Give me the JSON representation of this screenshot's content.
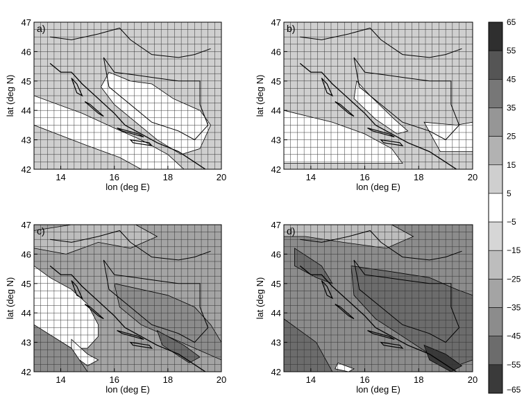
{
  "colors": {
    "bg": "#ffffff",
    "frame": "#000000",
    "grid": "#333333",
    "coast": "#000000",
    "levels": [
      "#2f2f2f",
      "#555555",
      "#777777",
      "#969696",
      "#b2b2b2",
      "#cfcfcf",
      "#ffffff",
      "#d6d6d6",
      "#bdbdbd",
      "#a4a4a4",
      "#8c8c8c",
      "#6c6c6c",
      "#3a3a3a"
    ]
  },
  "panels": [
    {
      "label": "a)",
      "xlabel": "lon (deg E)",
      "ylabel": "lat (deg N)",
      "base_level": 5
    },
    {
      "label": "b)",
      "xlabel": "lon (deg E)",
      "ylabel": "lat (deg N)",
      "base_level": 5
    },
    {
      "label": "c)",
      "xlabel": "lon (deg E)",
      "ylabel": "lat (deg N)",
      "base_level": 9
    },
    {
      "label": "d)",
      "xlabel": "lon (deg E)",
      "ylabel": "lat (deg N)",
      "base_level": 10
    }
  ],
  "axes": {
    "lon_range": [
      13,
      20
    ],
    "lat_range": [
      42,
      47
    ],
    "lon_ticks": [
      "14",
      "16",
      "18",
      "20"
    ],
    "lat_ticks": [
      "42",
      "43",
      "44",
      "45",
      "46",
      "47"
    ]
  },
  "colorbar": {
    "labels": [
      "65",
      "55",
      "45",
      "35",
      "25",
      "15",
      "5",
      "−5",
      "−15",
      "−25",
      "−35",
      "−45",
      "−55",
      "−65"
    ]
  },
  "chart_data": {
    "type": "heatmap",
    "x_range": [
      13,
      20
    ],
    "y_range": [
      42,
      47
    ],
    "levels": [
      65,
      55,
      45,
      35,
      25,
      15,
      5,
      -5,
      -15,
      -25,
      -35,
      -45,
      -55,
      -65
    ],
    "coastline": [
      [
        13.6,
        45.6
      ],
      [
        14.0,
        45.3
      ],
      [
        14.4,
        45.3
      ],
      [
        14.8,
        44.9
      ],
      [
        15.4,
        44.4
      ],
      [
        16.0,
        43.9
      ],
      [
        16.4,
        43.5
      ],
      [
        17.0,
        43.2
      ],
      [
        17.6,
        42.9
      ],
      [
        18.4,
        42.6
      ],
      [
        18.9,
        42.3
      ],
      [
        19.4,
        42.0
      ]
    ],
    "border_north": [
      [
        13.6,
        46.5
      ],
      [
        14.4,
        46.4
      ],
      [
        15.4,
        46.6
      ],
      [
        16.2,
        46.8
      ],
      [
        16.6,
        46.4
      ],
      [
        17.4,
        45.9
      ],
      [
        18.4,
        45.8
      ],
      [
        19.0,
        45.9
      ],
      [
        19.6,
        46.1
      ]
    ],
    "border_inner": [
      [
        15.6,
        45.8
      ],
      [
        16.0,
        45.3
      ],
      [
        16.8,
        45.2
      ],
      [
        17.6,
        45.1
      ],
      [
        18.4,
        45.0
      ],
      [
        19.2,
        45.0
      ],
      [
        19.2,
        44.2
      ],
      [
        19.5,
        43.5
      ],
      [
        19.0,
        43.0
      ],
      [
        18.4,
        43.3
      ],
      [
        17.4,
        43.6
      ],
      [
        16.6,
        44.2
      ],
      [
        15.8,
        44.8
      ],
      [
        15.6,
        45.8
      ]
    ],
    "islands": [
      [
        [
          14.4,
          45.1
        ],
        [
          14.6,
          44.6
        ],
        [
          14.8,
          44.5
        ],
        [
          14.6,
          44.9
        ]
      ],
      [
        [
          14.9,
          44.3
        ],
        [
          15.4,
          43.9
        ],
        [
          15.6,
          43.8
        ],
        [
          15.1,
          44.2
        ]
      ],
      [
        [
          16.1,
          43.4
        ],
        [
          16.9,
          43.2
        ],
        [
          17.1,
          43.1
        ],
        [
          16.3,
          43.3
        ]
      ],
      [
        [
          16.6,
          43.0
        ],
        [
          17.3,
          42.9
        ],
        [
          17.4,
          42.8
        ],
        [
          16.7,
          42.9
        ]
      ]
    ],
    "areas_by_panel": [
      [
        {
          "level": 6,
          "points": [
            [
              15.8,
              45.3
            ],
            [
              16.6,
              45.0
            ],
            [
              17.4,
              44.9
            ],
            [
              18.2,
              44.4
            ],
            [
              19.2,
              44.0
            ],
            [
              19.6,
              43.5
            ],
            [
              19.2,
              42.7
            ],
            [
              18.5,
              42.5
            ],
            [
              17.6,
              43.0
            ],
            [
              16.8,
              43.6
            ],
            [
              16.0,
              44.2
            ],
            [
              15.5,
              44.8
            ]
          ]
        },
        {
          "level": 6,
          "points": [
            [
              13.0,
              44.5
            ],
            [
              14.8,
              43.9
            ],
            [
              16.0,
              43.4
            ],
            [
              17.0,
              43.0
            ],
            [
              18.0,
              42.5
            ],
            [
              18.6,
              42.0
            ],
            [
              13.0,
              42.0
            ]
          ]
        },
        {
          "level": 5,
          "points": [
            [
              13.0,
              43.5
            ],
            [
              15.0,
              42.8
            ],
            [
              16.2,
              42.4
            ],
            [
              17.0,
              42.0
            ],
            [
              13.0,
              42.0
            ]
          ]
        }
      ],
      [
        {
          "level": 6,
          "points": [
            [
              15.7,
              45.0
            ],
            [
              16.2,
              44.5
            ],
            [
              17.1,
              43.7
            ],
            [
              17.6,
              43.3
            ],
            [
              17.2,
              43.2
            ],
            [
              16.4,
              43.7
            ],
            [
              15.6,
              44.4
            ]
          ]
        },
        {
          "level": 6,
          "points": [
            [
              13.0,
              44.0
            ],
            [
              14.8,
              43.6
            ],
            [
              16.0,
              43.2
            ],
            [
              17.0,
              42.7
            ],
            [
              17.4,
              42.2
            ],
            [
              13.0,
              42.2
            ]
          ]
        },
        {
          "level": 6,
          "points": [
            [
              18.2,
              43.6
            ],
            [
              19.4,
              43.5
            ],
            [
              20.0,
              43.6
            ],
            [
              20.0,
              42.6
            ],
            [
              18.8,
              42.6
            ]
          ]
        }
      ],
      [
        {
          "level": 6,
          "points": [
            [
              13.0,
              45.6
            ],
            [
              13.6,
              45.2
            ],
            [
              14.4,
              44.8
            ],
            [
              15.0,
              44.3
            ],
            [
              15.4,
              43.6
            ],
            [
              15.4,
              43.2
            ],
            [
              15.0,
              42.8
            ],
            [
              13.0,
              42.8
            ]
          ]
        },
        {
          "level": 6,
          "points": [
            [
              14.4,
              43.1
            ],
            [
              15.0,
              42.6
            ],
            [
              15.4,
              42.4
            ],
            [
              15.0,
              42.2
            ],
            [
              14.4,
              42.6
            ]
          ]
        },
        {
          "level": 10,
          "points": [
            [
              16.0,
              45.0
            ],
            [
              17.0,
              44.8
            ],
            [
              18.0,
              44.6
            ],
            [
              19.0,
              44.2
            ],
            [
              19.6,
              43.6
            ],
            [
              20.0,
              43.0
            ],
            [
              20.0,
              42.4
            ],
            [
              19.0,
              42.8
            ],
            [
              18.0,
              43.2
            ],
            [
              17.0,
              43.6
            ],
            [
              16.2,
              44.2
            ]
          ]
        },
        {
          "level": 11,
          "points": [
            [
              17.6,
              43.4
            ],
            [
              18.6,
              42.9
            ],
            [
              19.2,
              42.5
            ],
            [
              18.8,
              42.3
            ],
            [
              17.8,
              42.9
            ]
          ]
        },
        {
          "level": 8,
          "points": [
            [
              13.0,
              46.8
            ],
            [
              14.4,
              47.0
            ],
            [
              16.8,
              47.0
            ],
            [
              17.6,
              46.6
            ],
            [
              16.6,
              46.2
            ],
            [
              15.4,
              46.4
            ],
            [
              14.2,
              46.0
            ],
            [
              13.0,
              46.2
            ]
          ]
        },
        {
          "level": 10,
          "points": [
            [
              13.0,
              43.6
            ],
            [
              14.4,
              42.8
            ],
            [
              15.0,
              42.0
            ],
            [
              13.0,
              42.0
            ]
          ]
        }
      ],
      [
        {
          "level": 11,
          "points": [
            [
              15.5,
              45.6
            ],
            [
              17.0,
              45.4
            ],
            [
              18.4,
              45.2
            ],
            [
              19.4,
              44.8
            ],
            [
              20.0,
              44.6
            ],
            [
              20.0,
              42.4
            ],
            [
              19.4,
              42.2
            ],
            [
              18.4,
              42.6
            ],
            [
              17.4,
              43.2
            ],
            [
              16.4,
              43.8
            ],
            [
              15.6,
              44.6
            ]
          ]
        },
        {
          "level": 12,
          "points": [
            [
              18.2,
              42.9
            ],
            [
              19.0,
              42.6
            ],
            [
              19.6,
              42.2
            ],
            [
              19.2,
              42.0
            ],
            [
              18.4,
              42.4
            ]
          ]
        },
        {
          "level": 11,
          "points": [
            [
              13.0,
              43.8
            ],
            [
              14.2,
              43.0
            ],
            [
              14.8,
              42.0
            ],
            [
              13.0,
              42.0
            ]
          ]
        },
        {
          "level": 11,
          "points": [
            [
              13.4,
              46.2
            ],
            [
              14.4,
              45.6
            ],
            [
              14.8,
              45.0
            ],
            [
              14.2,
              45.2
            ],
            [
              13.4,
              45.6
            ]
          ]
        },
        {
          "level": 8,
          "points": [
            [
              13.0,
              47.0
            ],
            [
              17.0,
              47.0
            ],
            [
              17.8,
              46.6
            ],
            [
              16.8,
              46.2
            ],
            [
              15.2,
              46.4
            ],
            [
              13.8,
              46.6
            ],
            [
              13.0,
              46.6
            ]
          ]
        },
        {
          "level": 6,
          "points": [
            [
              15.0,
              42.3
            ],
            [
              15.6,
              42.1
            ],
            [
              15.4,
              42.0
            ],
            [
              14.9,
              42.1
            ]
          ]
        }
      ]
    ]
  }
}
